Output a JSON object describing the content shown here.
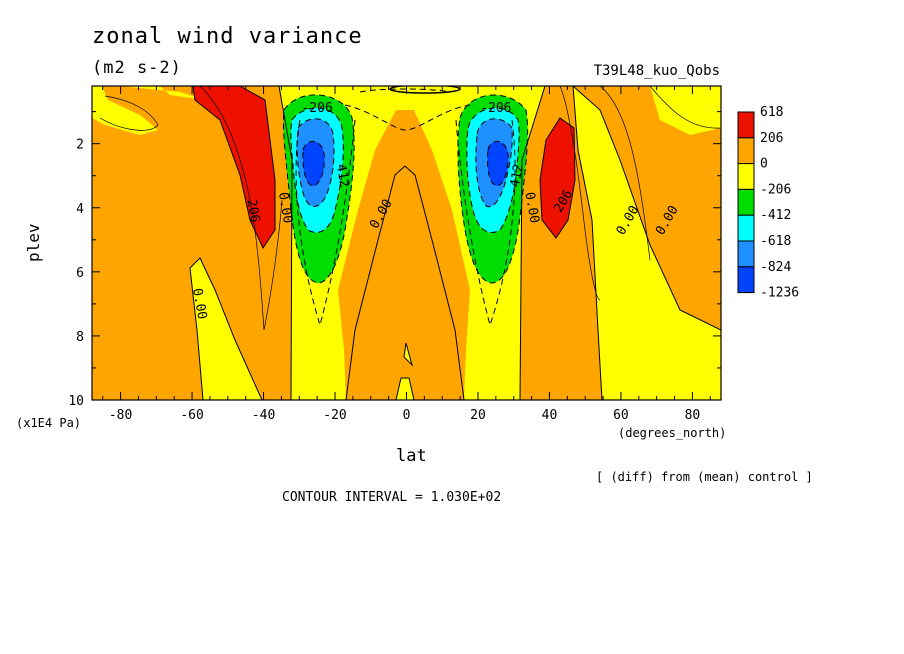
{
  "header": {
    "title": "zonal wind variance",
    "units": "(m2 s-2)",
    "run_label": "T39L48_kuo_Qobs"
  },
  "footer": {
    "note": "[ (diff) from (mean) control ]",
    "contour_interval": "CONTOUR INTERVAL = 1.030E+02"
  },
  "colors": {
    "red": "#ee1100",
    "orange": "#ffa500",
    "yellow": "#ffff00",
    "green": "#00dd00",
    "cyan": "#00ffff",
    "lightblue": "#1e90ff",
    "blue": "#0044ff"
  },
  "chart_data": {
    "type": "contour",
    "xlabel": "lat",
    "ylabel": "plev",
    "x_unit": "(degrees_north)",
    "y_unit": "(x1E4 Pa)",
    "xlim": [
      -88,
      88
    ],
    "ylim": [
      10,
      0.2
    ],
    "x_ticks": [
      -80,
      -60,
      -40,
      -20,
      0,
      20,
      40,
      60,
      80
    ],
    "x_tick_labels": [
      "-80",
      "-60",
      "-40",
      "-20",
      "0",
      "20",
      "40",
      "60",
      "80"
    ],
    "y_ticks": [
      2,
      4,
      6,
      8,
      10
    ],
    "y_tick_labels": [
      "2",
      "4",
      "6",
      "8",
      "10"
    ],
    "color_levels": [
      {
        "label": "618",
        "color": "#ee1100"
      },
      {
        "label": "206",
        "color": "#ffa500"
      },
      {
        "label": "0",
        "color": "#ffff00"
      },
      {
        "label": "-206",
        "color": "#00dd00"
      },
      {
        "label": "-412",
        "color": "#00ffff"
      },
      {
        "label": "-618",
        "color": "#1e90ff"
      },
      {
        "label": "-824",
        "color": "#0044ff"
      },
      {
        "label": "-1236",
        "color": ""
      }
    ],
    "contour_labels": [
      {
        "text": "-206",
        "lat": -25,
        "p": 0.9,
        "angle": 0
      },
      {
        "text": "-206",
        "lat": 25,
        "p": 0.9,
        "angle": 0
      },
      {
        "text": "412",
        "lat": -18,
        "p": 3.0,
        "angle": 80
      },
      {
        "text": "412",
        "lat": 31,
        "p": 3.0,
        "angle": -80
      },
      {
        "text": "0.00",
        "lat": -34,
        "p": 4.0,
        "angle": 80
      },
      {
        "text": "0.00",
        "lat": 35,
        "p": 4.0,
        "angle": 80
      },
      {
        "text": "206",
        "lat": -43,
        "p": 4.1,
        "angle": 80
      },
      {
        "text": "206",
        "lat": 44,
        "p": 3.8,
        "angle": -60
      },
      {
        "text": "0.00",
        "lat": -7,
        "p": 4.2,
        "angle": -60
      },
      {
        "text": "0.00",
        "lat": 62,
        "p": 4.4,
        "angle": -60
      },
      {
        "text": "0.00",
        "lat": 73,
        "p": 4.4,
        "angle": -60
      },
      {
        "text": "0.00",
        "lat": -58,
        "p": 7.0,
        "angle": 80
      }
    ]
  }
}
